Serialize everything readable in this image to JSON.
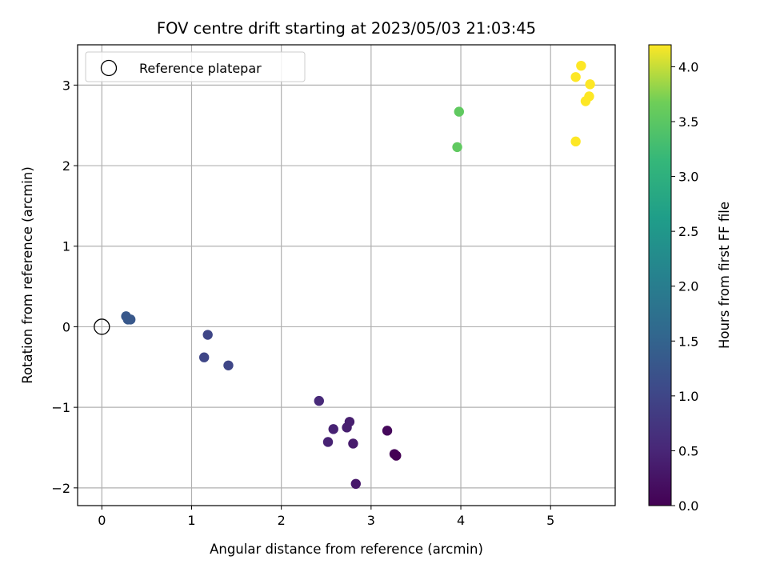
{
  "chart_data": {
    "type": "scatter",
    "title": "FOV centre drift starting at 2023/05/03 21:03:45",
    "xlabel": "Angular distance from reference (arcmin)",
    "ylabel": "Rotation from reference (arcmin)",
    "xlim": [
      -0.27,
      5.72
    ],
    "ylim": [
      -2.22,
      3.5
    ],
    "xticks": [
      0,
      1,
      2,
      3,
      4,
      5
    ],
    "yticks": [
      -2,
      -1,
      0,
      1,
      2,
      3
    ],
    "xtick_labels": [
      "0",
      "1",
      "2",
      "3",
      "4",
      "5"
    ],
    "ytick_labels": [
      "−2",
      "−1",
      "0",
      "1",
      "2",
      "3"
    ],
    "grid": true,
    "legend": {
      "position": "top-left",
      "entries": [
        {
          "label": "Reference platepar",
          "marker": "open-circle",
          "x": 0,
          "y": 0
        }
      ]
    },
    "colorbar": {
      "label": "Hours from first FF file",
      "colormap": "viridis",
      "range": [
        0.0,
        4.2
      ],
      "ticks": [
        0.0,
        0.5,
        1.0,
        1.5,
        2.0,
        2.5,
        3.0,
        3.5,
        4.0
      ],
      "tick_labels": [
        "0.0",
        "0.5",
        "1.0",
        "1.5",
        "2.0",
        "2.5",
        "3.0",
        "3.5",
        "4.0"
      ]
    },
    "points": [
      {
        "x": 0.27,
        "y": 0.13,
        "c": 1.3
      },
      {
        "x": 0.29,
        "y": 0.09,
        "c": 1.3
      },
      {
        "x": 0.32,
        "y": 0.09,
        "c": 1.3
      },
      {
        "x": 1.18,
        "y": -0.1,
        "c": 1.0
      },
      {
        "x": 1.14,
        "y": -0.38,
        "c": 1.0
      },
      {
        "x": 1.41,
        "y": -0.48,
        "c": 1.0
      },
      {
        "x": 2.42,
        "y": -0.92,
        "c": 0.55
      },
      {
        "x": 2.76,
        "y": -1.18,
        "c": 0.4
      },
      {
        "x": 2.73,
        "y": -1.25,
        "c": 0.4
      },
      {
        "x": 2.58,
        "y": -1.27,
        "c": 0.45
      },
      {
        "x": 2.52,
        "y": -1.43,
        "c": 0.45
      },
      {
        "x": 2.8,
        "y": -1.45,
        "c": 0.35
      },
      {
        "x": 2.83,
        "y": -1.95,
        "c": 0.3
      },
      {
        "x": 3.18,
        "y": -1.29,
        "c": 0.1
      },
      {
        "x": 3.26,
        "y": -1.58,
        "c": 0.05
      },
      {
        "x": 3.28,
        "y": -1.6,
        "c": 0.0
      },
      {
        "x": 3.98,
        "y": 2.67,
        "c": 3.55
      },
      {
        "x": 3.96,
        "y": 2.23,
        "c": 3.55
      },
      {
        "x": 5.34,
        "y": 3.24,
        "c": 4.2
      },
      {
        "x": 5.28,
        "y": 3.1,
        "c": 4.2
      },
      {
        "x": 5.44,
        "y": 3.01,
        "c": 4.2
      },
      {
        "x": 5.43,
        "y": 2.86,
        "c": 4.2
      },
      {
        "x": 5.39,
        "y": 2.8,
        "c": 4.2
      },
      {
        "x": 5.28,
        "y": 2.3,
        "c": 4.2
      }
    ]
  }
}
